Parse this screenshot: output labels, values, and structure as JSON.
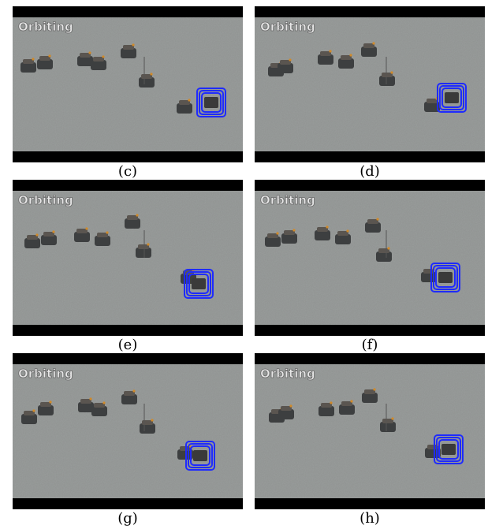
{
  "panels": [
    {
      "overlay": "Orbiting",
      "caption": "(c)"
    },
    {
      "overlay": "Orbiting",
      "caption": "(d)"
    },
    {
      "overlay": "Orbiting",
      "caption": "(e)"
    },
    {
      "overlay": "Orbiting",
      "caption": "(f)"
    },
    {
      "overlay": "Orbiting",
      "caption": "(g)"
    },
    {
      "overlay": "Orbiting",
      "caption": "(h)"
    }
  ]
}
